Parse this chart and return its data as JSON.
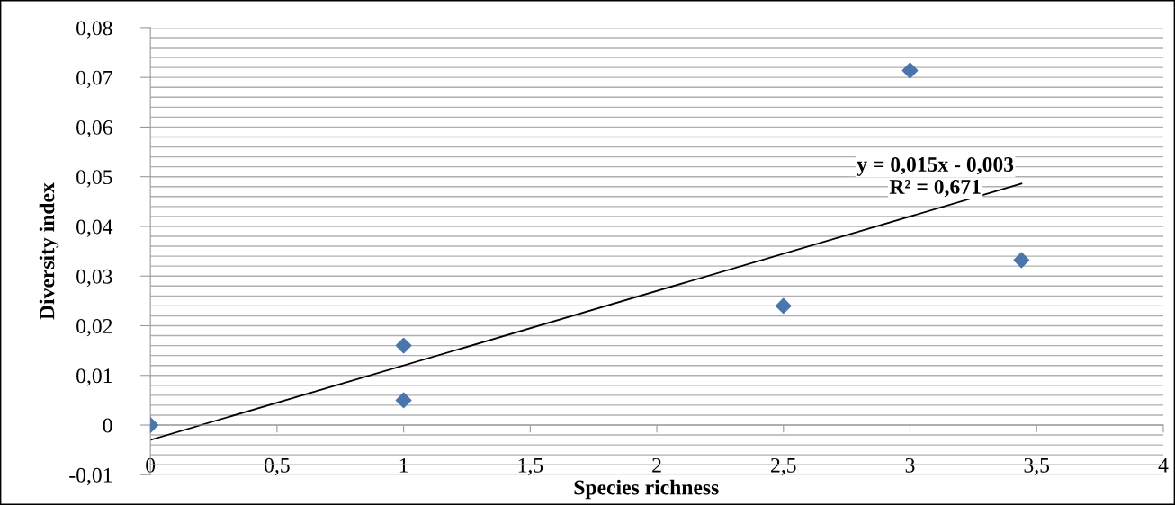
{
  "chart_data": {
    "type": "scatter",
    "xlabel": "Species richness",
    "ylabel": "Diversity index",
    "series": [
      {
        "color": "#4a76ad",
        "marker": "diamond",
        "x": [
          0,
          1,
          1,
          2.5,
          3,
          3.44
        ],
        "values": [
          0,
          0.016,
          0.005,
          0.024,
          0.0714,
          0.0332
        ]
      },
      {
        "type": "line",
        "color": "#000000",
        "marker": "none",
        "line_style": "solid",
        "x": [
          0,
          3.44
        ],
        "values": [
          -0.003,
          0.0486
        ]
      }
    ],
    "xlim": [
      0,
      4
    ],
    "xticks": [
      {
        "value": 0,
        "label": "0"
      },
      {
        "value": 0.5,
        "label": "0,5"
      },
      {
        "value": 1,
        "label": "1"
      },
      {
        "value": 1.5,
        "label": "1,5"
      },
      {
        "value": 2,
        "label": "2"
      },
      {
        "value": 2.5,
        "label": "2,5"
      },
      {
        "value": 3,
        "label": "3"
      },
      {
        "value": 3.5,
        "label": "3,5"
      },
      {
        "value": 4,
        "label": "4"
      }
    ],
    "ylim": [
      -0.01,
      0.08
    ],
    "yticks": [
      {
        "value": -0.01,
        "label": "-0,01"
      },
      {
        "value": -0.008,
        "label": null
      },
      {
        "value": -0.006,
        "label": null
      },
      {
        "value": -0.004,
        "label": null
      },
      {
        "value": -0.002,
        "label": null
      },
      {
        "value": 0,
        "label": "0"
      },
      {
        "value": 0.002,
        "label": null
      },
      {
        "value": 0.004,
        "label": null
      },
      {
        "value": 0.006,
        "label": null
      },
      {
        "value": 0.008,
        "label": null
      },
      {
        "value": 0.01,
        "label": "0,01"
      },
      {
        "value": 0.012,
        "label": null
      },
      {
        "value": 0.014,
        "label": null
      },
      {
        "value": 0.016,
        "label": null
      },
      {
        "value": 0.018,
        "label": null
      },
      {
        "value": 0.02,
        "label": "0,02"
      },
      {
        "value": 0.022,
        "label": null
      },
      {
        "value": 0.024,
        "label": null
      },
      {
        "value": 0.026,
        "label": null
      },
      {
        "value": 0.028,
        "label": null
      },
      {
        "value": 0.03,
        "label": "0,03"
      },
      {
        "value": 0.032,
        "label": null
      },
      {
        "value": 0.034,
        "label": null
      },
      {
        "value": 0.036,
        "label": null
      },
      {
        "value": 0.038,
        "label": null
      },
      {
        "value": 0.04,
        "label": "0,04"
      },
      {
        "value": 0.042,
        "label": null
      },
      {
        "value": 0.044,
        "label": null
      },
      {
        "value": 0.046,
        "label": null
      },
      {
        "value": 0.048,
        "label": null
      },
      {
        "value": 0.05,
        "label": "0,05"
      },
      {
        "value": 0.052,
        "label": null
      },
      {
        "value": 0.054,
        "label": null
      },
      {
        "value": 0.056,
        "label": null
      },
      {
        "value": 0.058,
        "label": null
      },
      {
        "value": 0.06,
        "label": "0,06"
      },
      {
        "value": 0.062,
        "label": null
      },
      {
        "value": 0.064,
        "label": null
      },
      {
        "value": 0.066,
        "label": null
      },
      {
        "value": 0.068,
        "label": null
      },
      {
        "value": 0.07,
        "label": "0,07"
      },
      {
        "value": 0.072,
        "label": null
      },
      {
        "value": 0.074,
        "label": null
      },
      {
        "value": 0.076,
        "label": null
      },
      {
        "value": 0.078,
        "label": null
      },
      {
        "value": 0.08,
        "label": "0,08"
      }
    ],
    "grid": "y",
    "annotations": [
      "y = 0,015x - 0,003",
      "R² = 0,671"
    ]
  }
}
